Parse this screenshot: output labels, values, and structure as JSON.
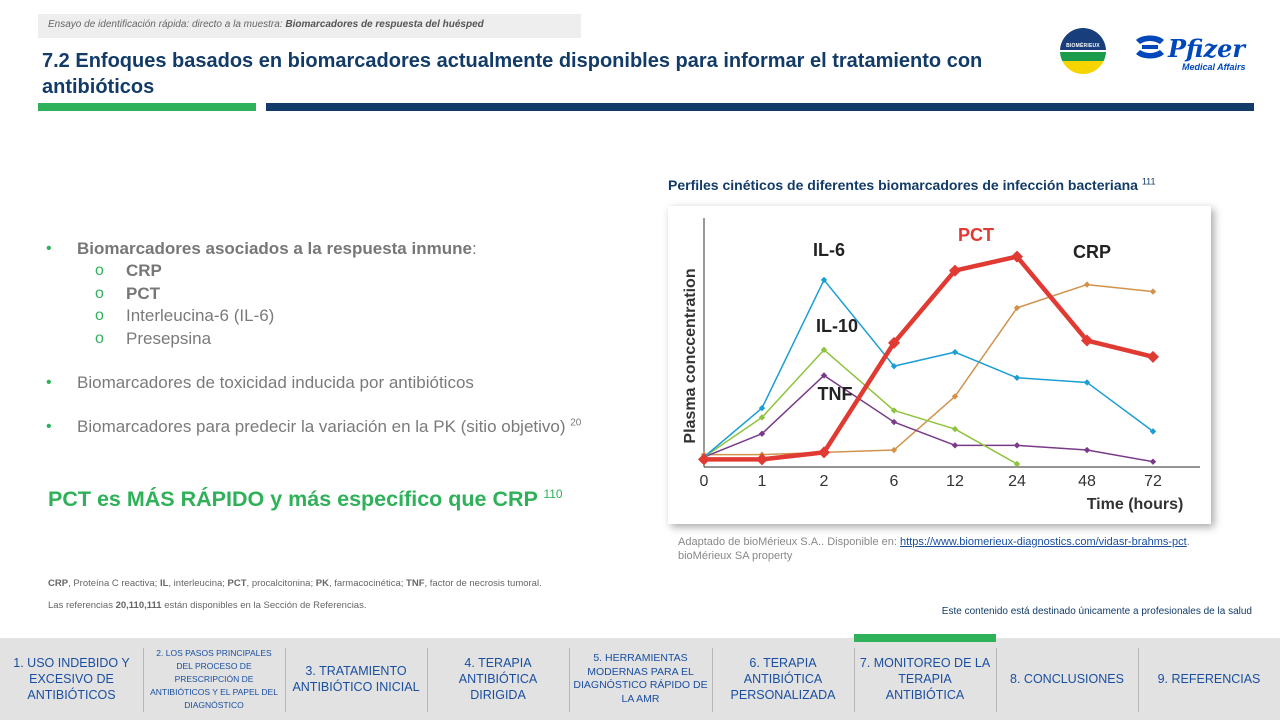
{
  "breadcrumb": {
    "prefix": "Ensayo de identificación rápida: directo a la muestra:",
    "section": "Biomarcadores de respuesta del huésped"
  },
  "page_title": "7.2 Enfoques basados en biomarcadores actualmente disponibles para informar el tratamiento con antibióticos",
  "logos": {
    "biomerieux": "BIOMÉRIEUX",
    "pfizer_word": "Pfizer",
    "pfizer_sub": "Medical Affairs"
  },
  "bullets": {
    "b1_bold": "Biomarcadores asociados a la respuesta inmune",
    "b1_tail": ":",
    "subitems": [
      "CRP",
      "PCT",
      "Interleucina-6 (IL-6)",
      "Presepsina"
    ],
    "b2": "Biomarcadores de toxicidad inducida por antibióticos",
    "b3": "Biomarcadores para predecir la variación en la PK (sitio objetivo)",
    "b3_ref": "20"
  },
  "highlight": {
    "text": "PCT es MÁS RÁPIDO y más específico que CRP",
    "ref": "110"
  },
  "footnote": {
    "abbr": [
      {
        "b": "CRP",
        "t": ", Proteína C reactiva; "
      },
      {
        "b": "IL",
        "t": ", interleucina; "
      },
      {
        "b": "PCT",
        "t": ", procalcitonina; "
      },
      {
        "b": "PK",
        "t": ", farmacocinética; "
      },
      {
        "b": "TNF",
        "t": ", factor de necrosis tumoral."
      }
    ],
    "refs_prefix": "Las referencias ",
    "refs_bold": "20,110,111",
    "refs_suffix": " están disponibles en la Sección de Referencias."
  },
  "disclaimer": "Este contenido está destinado únicamente a profesionales de la salud",
  "chart": {
    "title": "Perfiles cinéticos de diferentes biomarcadores de infección bacteriana",
    "title_ref": "111"
  },
  "source": {
    "line1_prefix": "Adaptado de bioMérieux S.A..  Disponible en: ",
    "link": "https://www.biomerieux-diagnostics.com/vidasr-brahms-pct",
    "line1_suffix": ".",
    "line2": "bioMérieux SA property"
  },
  "chart_data": {
    "type": "line",
    "title": "",
    "xlabel": "Time (hours)",
    "ylabel": "Plasma conccentration",
    "categories": [
      "0",
      "1",
      "2",
      "6",
      "12",
      "24",
      "48",
      "72"
    ],
    "ylim": [
      0,
      100
    ],
    "grid": false,
    "series": [
      {
        "name": "IL-6",
        "color": "#1a9ed4",
        "width": 1.5,
        "values": [
          3,
          24,
          79,
          42,
          48,
          37,
          35,
          14
        ],
        "label_color": "#222222"
      },
      {
        "name": "IL-10",
        "color": "#8dc43c",
        "width": 1.5,
        "values": [
          3,
          20,
          49,
          23,
          15,
          0,
          null,
          null
        ],
        "label_color": "#222222"
      },
      {
        "name": "TNF",
        "color": "#7a3a8a",
        "width": 1.5,
        "values": [
          3,
          13,
          38,
          18,
          8,
          8,
          6,
          1
        ],
        "label_color": "#222222"
      },
      {
        "name": "CRP",
        "color": "#d2924c",
        "width": 1.5,
        "values": [
          4,
          4,
          5,
          6,
          29,
          67,
          77,
          74
        ],
        "label_color": "#222222"
      },
      {
        "name": "PCT",
        "color": "#e03a32",
        "width": 4.5,
        "values": [
          2,
          2,
          5,
          52,
          83,
          89,
          53,
          46
        ],
        "label_color": "#e03a32"
      }
    ]
  },
  "nav": [
    {
      "label": "1. USO INDEBIDO Y EXCESIVO DE ANTIBIÓTICOS"
    },
    {
      "label": "2. LOS PASOS PRINCIPALES DEL PROCESO DE PRESCRIPCIÓN DE ANTIBIÓTICOS Y EL PAPEL DEL DIAGNÓSTICO"
    },
    {
      "label": "3. TRATAMIENTO ANTIBIÓTICO INICIAL"
    },
    {
      "label": "4. TERAPIA ANTIBIÓTICA DIRIGIDA"
    },
    {
      "label": "5. HERRAMIENTAS MODERNAS PARA EL DIAGNÓSTICO RÁPIDO DE LA AMR"
    },
    {
      "label": "6. TERAPIA ANTIBIÓTICA PERSONALIZADA"
    },
    {
      "label": "7. MONITOREO DE LA TERAPIA ANTIBIÓTICA"
    },
    {
      "label": "8. CONCLUSIONES"
    },
    {
      "label": "9. REFERENCIAS"
    }
  ]
}
